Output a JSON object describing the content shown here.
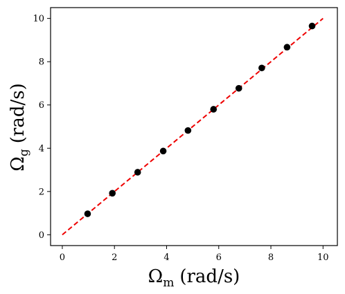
{
  "chart_data": {
    "type": "scatter",
    "xlabel": {
      "symbol": "Ω",
      "sub": "m",
      "unit": "(rad/s)"
    },
    "ylabel": {
      "symbol": "Ω",
      "sub": "g",
      "unit": "(rad/s)"
    },
    "xlim": [
      -0.45,
      10.55
    ],
    "ylim": [
      -0.5,
      10.5
    ],
    "xticks": [
      0,
      2,
      4,
      6,
      8,
      10
    ],
    "yticks": [
      0,
      2,
      4,
      6,
      8,
      10
    ],
    "grid": false,
    "series": [
      {
        "kind": "points",
        "color": "#000000",
        "x": [
          0.97,
          1.92,
          2.89,
          3.87,
          4.82,
          5.8,
          6.77,
          7.65,
          8.62,
          9.58
        ],
        "y": [
          0.97,
          1.92,
          2.89,
          3.87,
          4.82,
          5.8,
          6.77,
          7.71,
          8.67,
          9.65
        ]
      },
      {
        "kind": "reference-line",
        "color": "#ee0000",
        "style": "dashed",
        "x": [
          0,
          10
        ],
        "y": [
          0,
          10
        ]
      }
    ]
  }
}
